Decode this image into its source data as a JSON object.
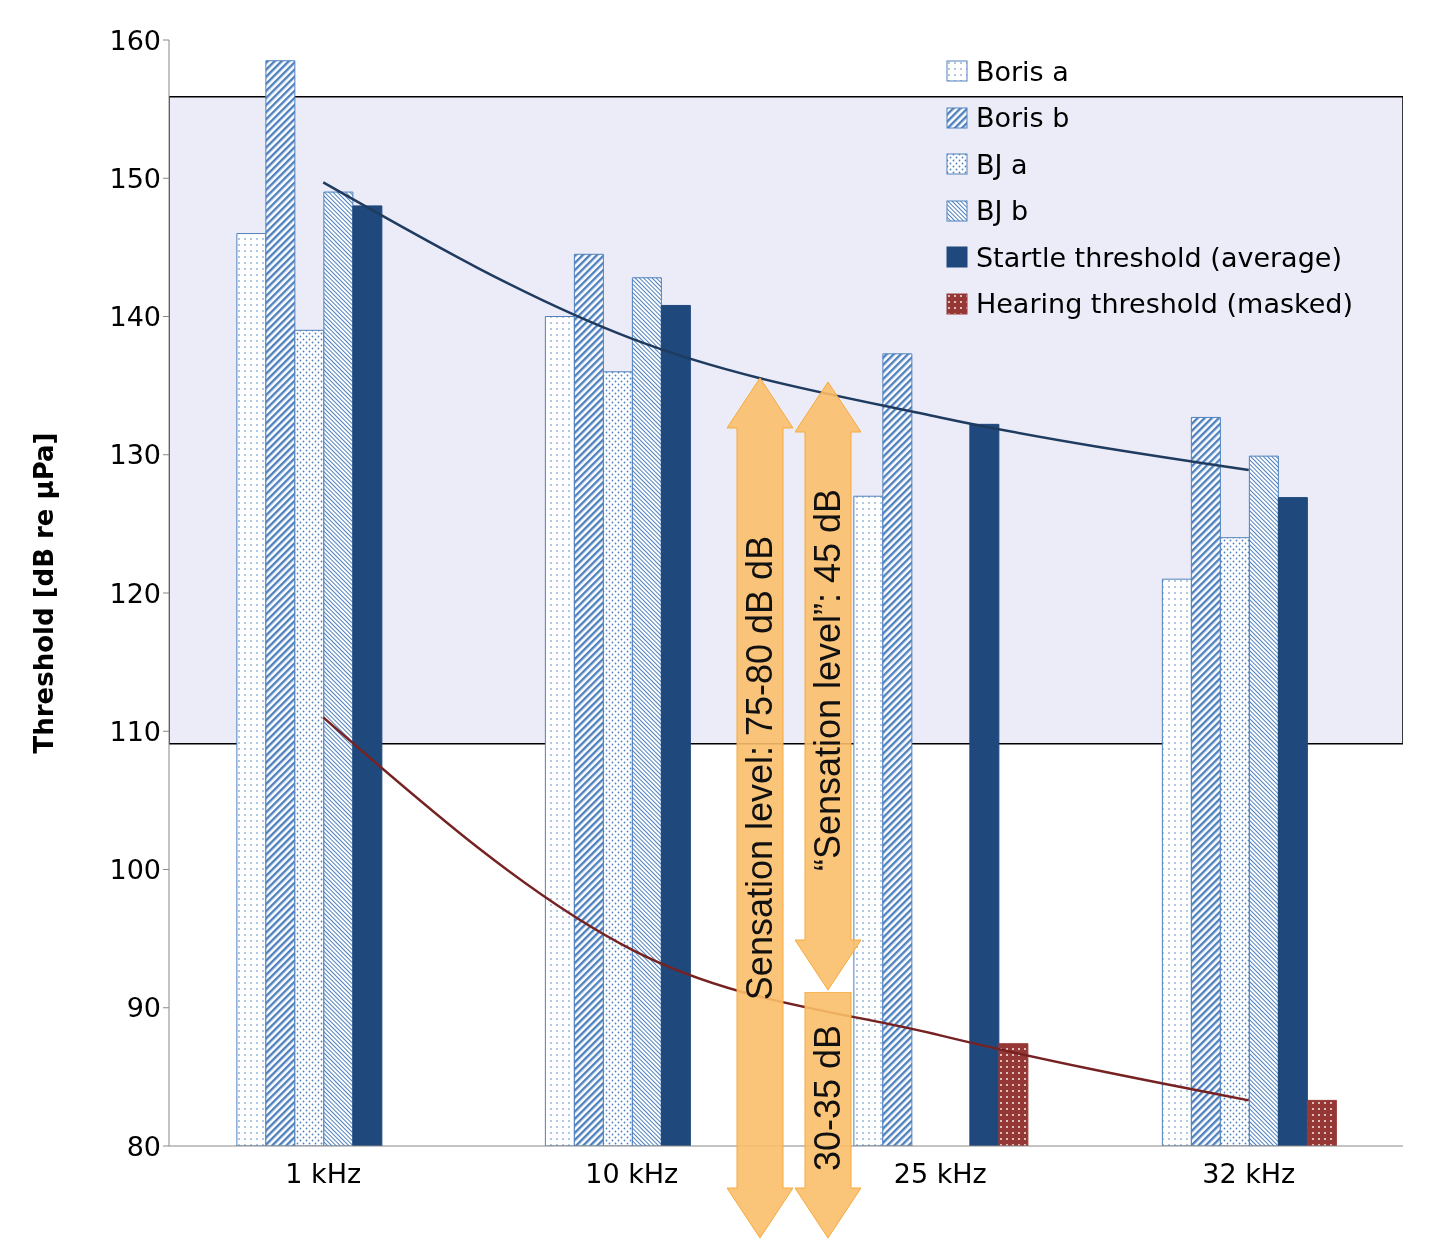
{
  "chart_data": {
    "type": "bar",
    "ylabel": "Threshold [dB re µPa]",
    "categories": [
      "1 kHz",
      "10 kHz",
      "25 kHz",
      "32 kHz"
    ],
    "series": [
      {
        "name": "Boris a",
        "color": "#4f81bd",
        "values": [
          146,
          140,
          127,
          121
        ]
      },
      {
        "name": "Boris b",
        "color": "#4f81bd",
        "values": [
          158.5,
          144.5,
          137.3,
          132.7
        ]
      },
      {
        "name": "BJ a",
        "color": "#4f81bd",
        "values": [
          139,
          136,
          null,
          124
        ]
      },
      {
        "name": "BJ b",
        "color": "#4f81bd",
        "values": [
          149,
          142.8,
          null,
          129.9
        ]
      },
      {
        "name": "Startle threshold (average)",
        "color": "#1f497d",
        "values": [
          148,
          140.8,
          132.2,
          126.9
        ]
      },
      {
        "name": "Hearing threshold (masked)",
        "color": "#953735",
        "values": [
          null,
          null,
          87.4,
          83.3
        ]
      },
      {
        "type": "line",
        "color": "#1f3b5f",
        "values": [
          149.7,
          138.4,
          132.7,
          128.9
        ]
      },
      {
        "type": "line",
        "color": "#772222",
        "values": [
          111,
          94.2,
          88,
          83.3
        ]
      }
    ],
    "ylim": [
      80,
      160
    ],
    "yticks": [
      80,
      90,
      100,
      110,
      120,
      130,
      140,
      150,
      160
    ],
    "bands": [
      {
        "axis": "y",
        "from": 109.1,
        "to": 155.9,
        "color": "#dcdcf4"
      }
    ],
    "annotations": [
      "Sensation level: 75-80 dB dB",
      "“Sensation level”: 45 dB",
      "30-35 dB"
    ],
    "legend": "top right",
    "marker": "none",
    "line_style": "solid"
  }
}
